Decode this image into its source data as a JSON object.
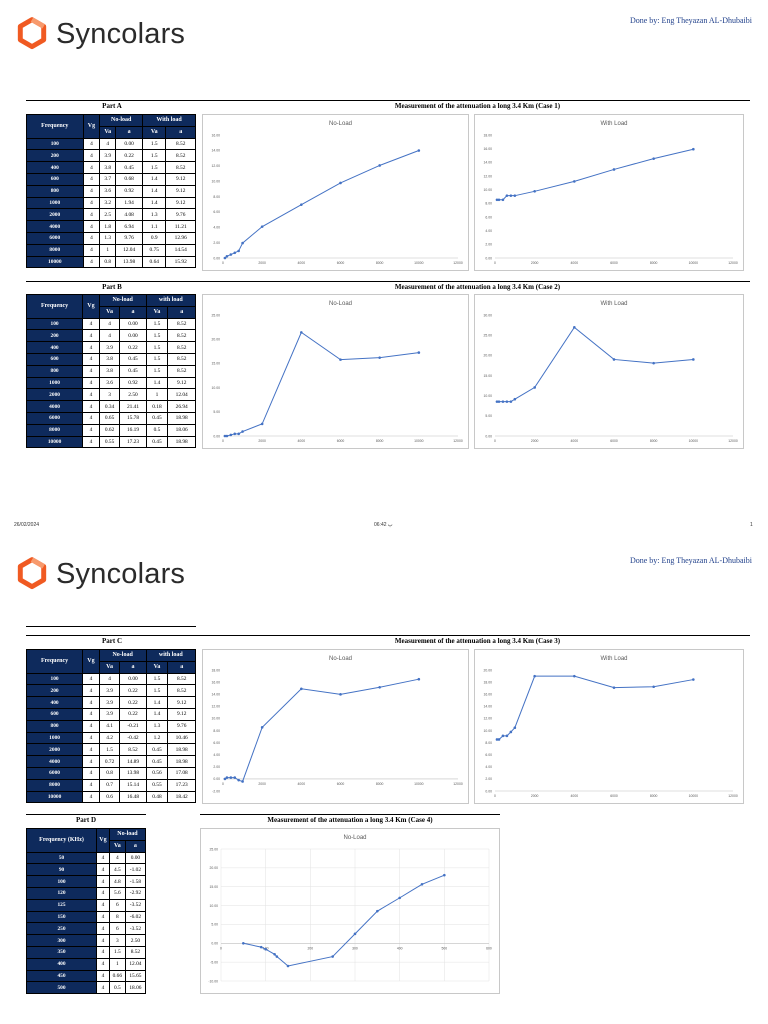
{
  "brand": {
    "name": "Syncolars",
    "orange": "#f05a22"
  },
  "credit": "Done by: Eng Theyazan AL-Dhubaibi",
  "footer": {
    "date": "26/02/2024",
    "time": "06:42 پ",
    "page": "1"
  },
  "table_headers": {
    "frequency": "Frequency",
    "frequency_khz": "Frequency (KHz)",
    "vg": "Vg",
    "no_load": "No-load",
    "with_load": "With load",
    "with_load_lower": "with load",
    "va": "Va",
    "a": "a"
  },
  "sections": {
    "A": {
      "label": "Part A",
      "title": "Measurement of the attenuation a long 3.4 Km (Case 1)",
      "rows": [
        [
          "100",
          "4",
          "4",
          "0.00",
          "1.5",
          "8.52"
        ],
        [
          "200",
          "4",
          "3.9",
          "0.22",
          "1.5",
          "8.52"
        ],
        [
          "400",
          "4",
          "3.8",
          "0.45",
          "1.5",
          "8.52"
        ],
        [
          "600",
          "4",
          "3.7",
          "0.68",
          "1.4",
          "9.12"
        ],
        [
          "800",
          "4",
          "3.6",
          "0.92",
          "1.4",
          "9.12"
        ],
        [
          "1000",
          "4",
          "3.2",
          "1.94",
          "1.4",
          "9.12"
        ],
        [
          "2000",
          "4",
          "2.5",
          "4.08",
          "1.3",
          "9.76"
        ],
        [
          "4000",
          "4",
          "1.8",
          "6.94",
          "1.1",
          "11.21"
        ],
        [
          "6000",
          "4",
          "1.3",
          "9.76",
          "0.9",
          "12.96"
        ],
        [
          "8000",
          "4",
          "1",
          "12.04",
          "0.75",
          "14.54"
        ],
        [
          "10000",
          "4",
          "0.8",
          "13.98",
          "0.64",
          "15.92"
        ]
      ]
    },
    "B": {
      "label": "Part B",
      "title": "Measurement of the attenuation a long 3.4 Km (Case 2)",
      "rows": [
        [
          "100",
          "4",
          "4",
          "0.00",
          "1.5",
          "8.52"
        ],
        [
          "200",
          "4",
          "4",
          "0.00",
          "1.5",
          "8.52"
        ],
        [
          "400",
          "4",
          "3.9",
          "0.22",
          "1.5",
          "8.52"
        ],
        [
          "600",
          "4",
          "3.8",
          "0.45",
          "1.5",
          "8.52"
        ],
        [
          "800",
          "4",
          "3.8",
          "0.45",
          "1.5",
          "8.52"
        ],
        [
          "1000",
          "4",
          "3.6",
          "0.92",
          "1.4",
          "9.12"
        ],
        [
          "2000",
          "4",
          "3",
          "2.50",
          "1",
          "12.04"
        ],
        [
          "4000",
          "4",
          "0.34",
          "21.41",
          "0.18",
          "26.94"
        ],
        [
          "6000",
          "4",
          "0.65",
          "15.78",
          "0.45",
          "18.98"
        ],
        [
          "8000",
          "4",
          "0.62",
          "16.19",
          "0.5",
          "18.06"
        ],
        [
          "10000",
          "4",
          "0.55",
          "17.23",
          "0.45",
          "18.98"
        ]
      ]
    },
    "C": {
      "label": "Part C",
      "title": "Measurement of the attenuation a long 3.4 Km (Case 3)",
      "rows": [
        [
          "100",
          "4",
          "4",
          "0.00",
          "1.5",
          "8.52"
        ],
        [
          "200",
          "4",
          "3.9",
          "0.22",
          "1.5",
          "8.52"
        ],
        [
          "400",
          "4",
          "3.9",
          "0.22",
          "1.4",
          "9.12"
        ],
        [
          "600",
          "4",
          "3.9",
          "0.22",
          "1.4",
          "9.12"
        ],
        [
          "800",
          "4",
          "4.1",
          "-0.21",
          "1.3",
          "9.76"
        ],
        [
          "1000",
          "4",
          "4.2",
          "-0.42",
          "1.2",
          "10.46"
        ],
        [
          "2000",
          "4",
          "1.5",
          "8.52",
          "0.45",
          "18.98"
        ],
        [
          "4000",
          "4",
          "0.72",
          "14.89",
          "0.45",
          "18.98"
        ],
        [
          "6000",
          "4",
          "0.8",
          "13.98",
          "0.56",
          "17.08"
        ],
        [
          "8000",
          "4",
          "0.7",
          "15.14",
          "0.55",
          "17.23"
        ],
        [
          "10000",
          "4",
          "0.6",
          "16.48",
          "0.48",
          "18.42"
        ]
      ]
    },
    "D": {
      "label": "Part D",
      "title": "Measurement of the attenuation a long 3.4 Km (Case 4)",
      "rows": [
        [
          "50",
          "4",
          "4",
          "0.00"
        ],
        [
          "90",
          "4",
          "4.5",
          "-1.02"
        ],
        [
          "100",
          "4",
          "4.8",
          "-1.58"
        ],
        [
          "120",
          "4",
          "5.6",
          "-2.92"
        ],
        [
          "125",
          "4",
          "6",
          "-3.52"
        ],
        [
          "150",
          "4",
          "8",
          "-6.02"
        ],
        [
          "250",
          "4",
          "6",
          "-3.52"
        ],
        [
          "300",
          "4",
          "3",
          "2.50"
        ],
        [
          "350",
          "4",
          "1.5",
          "8.52"
        ],
        [
          "400",
          "4",
          "1",
          "12.04"
        ],
        [
          "450",
          "4",
          "0.66",
          "15.65"
        ],
        [
          "500",
          "4",
          "0.5",
          "18.06"
        ]
      ]
    }
  },
  "chart_data": [
    {
      "type": "line",
      "title": "No-Load",
      "x": [
        100,
        200,
        400,
        600,
        800,
        1000,
        2000,
        4000,
        6000,
        8000,
        10000
      ],
      "y": [
        0,
        0.22,
        0.45,
        0.68,
        0.92,
        1.94,
        4.08,
        6.94,
        9.76,
        12.04,
        13.98
      ],
      "xlim": [
        0,
        12000
      ],
      "ylim": [
        0,
        16
      ],
      "xticks": [
        0,
        2000,
        4000,
        6000,
        8000,
        10000,
        12000
      ],
      "yticks": [
        0,
        2,
        4,
        6,
        8,
        10,
        12,
        14,
        16
      ],
      "color": "#4472c4"
    },
    {
      "type": "line",
      "title": "With Load",
      "x": [
        100,
        200,
        400,
        600,
        800,
        1000,
        2000,
        4000,
        6000,
        8000,
        10000
      ],
      "y": [
        8.52,
        8.52,
        8.52,
        9.12,
        9.12,
        9.12,
        9.76,
        11.21,
        12.96,
        14.54,
        15.92
      ],
      "xlim": [
        0,
        12000
      ],
      "ylim": [
        0,
        18
      ],
      "xticks": [
        0,
        2000,
        4000,
        6000,
        8000,
        10000,
        12000
      ],
      "yticks": [
        0,
        2,
        4,
        6,
        8,
        10,
        12,
        14,
        16,
        18
      ],
      "color": "#4472c4"
    },
    {
      "type": "line",
      "title": "No-Load",
      "x": [
        100,
        200,
        400,
        600,
        800,
        1000,
        2000,
        4000,
        6000,
        8000,
        10000
      ],
      "y": [
        0,
        0,
        0.22,
        0.45,
        0.45,
        0.92,
        2.5,
        21.41,
        15.78,
        16.19,
        17.23
      ],
      "xlim": [
        0,
        12000
      ],
      "ylim": [
        0,
        25
      ],
      "xticks": [
        0,
        2000,
        4000,
        6000,
        8000,
        10000,
        12000
      ],
      "yticks": [
        0,
        5,
        10,
        15,
        20,
        25
      ],
      "color": "#4472c4"
    },
    {
      "type": "line",
      "title": "With Load",
      "x": [
        100,
        200,
        400,
        600,
        800,
        1000,
        2000,
        4000,
        6000,
        8000,
        10000
      ],
      "y": [
        8.52,
        8.52,
        8.52,
        8.52,
        8.52,
        9.12,
        12.04,
        26.94,
        18.98,
        18.06,
        18.98
      ],
      "xlim": [
        0,
        12000
      ],
      "ylim": [
        0,
        30
      ],
      "xticks": [
        0,
        2000,
        4000,
        6000,
        8000,
        10000,
        12000
      ],
      "yticks": [
        0,
        5,
        10,
        15,
        20,
        25,
        30
      ],
      "color": "#4472c4"
    },
    {
      "type": "line",
      "title": "No-Load",
      "x": [
        100,
        200,
        400,
        600,
        800,
        1000,
        2000,
        4000,
        6000,
        8000,
        10000
      ],
      "y": [
        0,
        0.22,
        0.22,
        0.22,
        -0.21,
        -0.42,
        8.52,
        14.89,
        13.98,
        15.14,
        16.48
      ],
      "xlim": [
        0,
        12000
      ],
      "ylim": [
        -2,
        18
      ],
      "xticks": [
        0,
        2000,
        4000,
        6000,
        8000,
        10000,
        12000
      ],
      "yticks": [
        -2,
        0,
        2,
        4,
        6,
        8,
        10,
        12,
        14,
        16,
        18
      ],
      "color": "#4472c4"
    },
    {
      "type": "line",
      "title": "With Load",
      "x": [
        100,
        200,
        400,
        600,
        800,
        1000,
        2000,
        4000,
        6000,
        8000,
        10000
      ],
      "y": [
        8.52,
        8.52,
        9.12,
        9.12,
        9.76,
        10.46,
        18.98,
        18.98,
        17.08,
        17.23,
        18.42
      ],
      "xlim": [
        0,
        12000
      ],
      "ylim": [
        0,
        20
      ],
      "xticks": [
        0,
        2000,
        4000,
        6000,
        8000,
        10000,
        12000
      ],
      "yticks": [
        0,
        2,
        4,
        6,
        8,
        10,
        12,
        14,
        16,
        18,
        20
      ],
      "color": "#4472c4"
    },
    {
      "type": "line",
      "title": "No-Load",
      "x": [
        50,
        90,
        100,
        120,
        125,
        150,
        250,
        300,
        350,
        400,
        450,
        500
      ],
      "y": [
        0,
        -1.02,
        -1.58,
        -2.92,
        -3.52,
        -6.02,
        -3.52,
        2.5,
        8.52,
        12.04,
        15.65,
        18.06
      ],
      "xlim": [
        0,
        600
      ],
      "ylim": [
        -10,
        25
      ],
      "xticks": [
        0,
        100,
        200,
        300,
        400,
        500,
        600
      ],
      "yticks": [
        -10,
        -5,
        0,
        5,
        10,
        15,
        20,
        25
      ],
      "color": "#4472c4",
      "grid": true
    }
  ]
}
